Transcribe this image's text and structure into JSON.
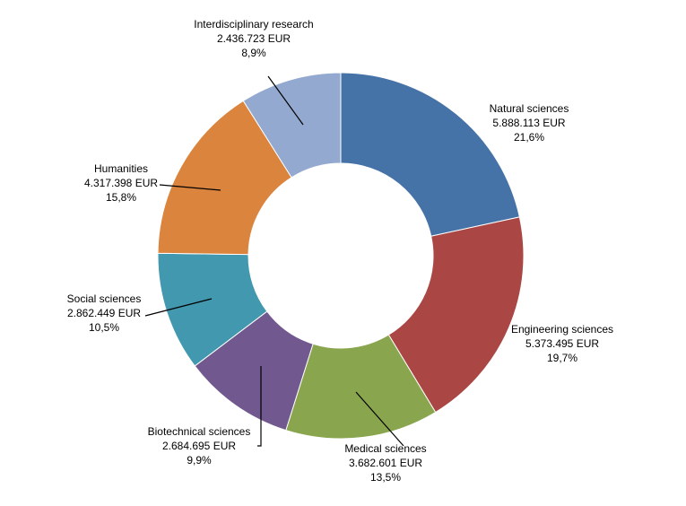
{
  "chart_data": {
    "type": "pie",
    "donut": true,
    "title": "",
    "slices": [
      {
        "label": "Natural sciences",
        "amount": "5.888.113 EUR",
        "percent_label": "21,6%",
        "value": 5888113,
        "color": "#4572A7"
      },
      {
        "label": "Engineering sciences",
        "amount": "5.373.495 EUR",
        "percent_label": "19,7%",
        "value": 5373495,
        "color": "#AA4643"
      },
      {
        "label": "Medical sciences",
        "amount": "3.682.601 EUR",
        "percent_label": "13,5%",
        "value": 3682601,
        "color": "#89A54E"
      },
      {
        "label": "Biotechnical sciences",
        "amount": "2.684.695 EUR",
        "percent_label": "9,9%",
        "value": 2684695,
        "color": "#71588F"
      },
      {
        "label": "Social sciences",
        "amount": "2.862.449 EUR",
        "percent_label": "10,5%",
        "value": 2862449,
        "color": "#4198AF"
      },
      {
        "label": "Humanities",
        "amount": "4.317.398 EUR",
        "percent_label": "15,8%",
        "value": 4317398,
        "color": "#DB843D"
      },
      {
        "label": "Interdisciplinary research",
        "amount": "2.436.723 EUR",
        "percent_label": "8,9%",
        "value": 2436723,
        "color": "#93A9CF"
      }
    ]
  }
}
